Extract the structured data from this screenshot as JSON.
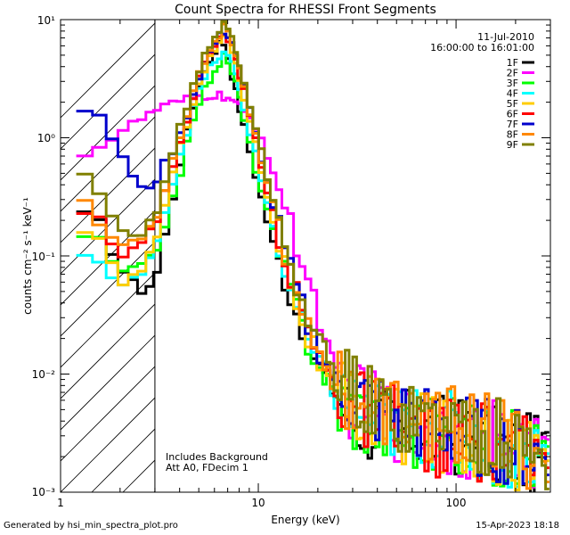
{
  "chart_data": {
    "type": "line",
    "title": "Count Spectra for RHESSI Front Segments",
    "xlabel": "Energy (keV)",
    "ylabel": "counts cm⁻² s⁻¹ keV⁻¹",
    "x_scale": "log",
    "y_scale": "log",
    "xlim": [
      1,
      300
    ],
    "ylim": [
      0.001,
      10
    ],
    "x_tick_labels": [
      "1",
      "10",
      "100"
    ],
    "y_tick_labels": [
      "10⁰",
      "10¹",
      "10⁻¹",
      "10⁻²",
      "10⁻³"
    ],
    "annotations": {
      "date": "11-Jul-2010",
      "time_range": "16:00:00 to 16:01:00",
      "background_note": "Includes Background",
      "attenuator_note": "Att A0, FDecim 1"
    },
    "hatched_region_max_keV": 3,
    "series": [
      {
        "name": "1F",
        "color": "#000000",
        "points": [
          [
            1.5,
            0.22
          ],
          [
            2,
            0.08
          ],
          [
            2.5,
            0.05
          ],
          [
            3,
            0.06
          ],
          [
            4,
            0.6
          ],
          [
            5,
            2.8
          ],
          [
            6,
            5.5
          ],
          [
            6.6,
            6.8
          ],
          [
            7,
            5
          ],
          [
            8,
            1.8
          ],
          [
            10,
            0.4
          ],
          [
            12,
            0.12
          ],
          [
            15,
            0.04
          ],
          [
            20,
            0.012
          ],
          [
            30,
            0.004
          ],
          [
            50,
            0.0035
          ],
          [
            100,
            0.003
          ],
          [
            200,
            0.0022
          ],
          [
            280,
            0.002
          ]
        ]
      },
      {
        "name": "2F",
        "color": "#ff00ff",
        "points": [
          [
            1.2,
            0.72
          ],
          [
            1.5,
            0.8
          ],
          [
            2,
            1.1
          ],
          [
            2.5,
            1.4
          ],
          [
            3,
            1.7
          ],
          [
            4,
            2.0
          ],
          [
            5,
            2.2
          ],
          [
            6,
            2.3
          ],
          [
            7,
            2.2
          ],
          [
            8,
            1.8
          ],
          [
            10,
            1.2
          ],
          [
            12,
            0.5
          ],
          [
            15,
            0.15
          ],
          [
            18,
            0.06
          ],
          [
            20,
            0.035
          ],
          [
            25,
            0.008
          ],
          [
            30,
            0.006
          ],
          [
            50,
            0.004
          ],
          [
            100,
            0.003
          ],
          [
            200,
            0.0025
          ],
          [
            280,
            0.002
          ]
        ]
      },
      {
        "name": "3F",
        "color": "#00ff00",
        "points": [
          [
            1.5,
            0.15
          ],
          [
            2,
            0.07
          ],
          [
            2.5,
            0.08
          ],
          [
            3,
            0.1
          ],
          [
            4,
            0.5
          ],
          [
            5,
            2.0
          ],
          [
            6,
            3.8
          ],
          [
            6.7,
            4.8
          ],
          [
            7.5,
            3.5
          ],
          [
            9,
            0.9
          ],
          [
            11,
            0.25
          ],
          [
            14,
            0.06
          ],
          [
            18,
            0.018
          ],
          [
            25,
            0.006
          ],
          [
            40,
            0.004
          ],
          [
            80,
            0.003
          ],
          [
            150,
            0.0025
          ],
          [
            280,
            0.002
          ]
        ]
      },
      {
        "name": "4F",
        "color": "#00ffff",
        "points": [
          [
            1.5,
            0.1
          ],
          [
            2,
            0.05
          ],
          [
            2.5,
            0.07
          ],
          [
            3,
            0.12
          ],
          [
            4,
            0.7
          ],
          [
            5,
            2.5
          ],
          [
            6,
            4.5
          ],
          [
            6.8,
            5.2
          ],
          [
            7.5,
            4
          ],
          [
            9,
            1.2
          ],
          [
            11,
            0.3
          ],
          [
            14,
            0.06
          ],
          [
            18,
            0.018
          ],
          [
            25,
            0.006
          ],
          [
            40,
            0.004
          ],
          [
            80,
            0.0035
          ],
          [
            150,
            0.0025
          ],
          [
            280,
            0.002
          ]
        ]
      },
      {
        "name": "5F",
        "color": "#ffcc00",
        "points": [
          [
            1.5,
            0.15
          ],
          [
            2,
            0.06
          ],
          [
            2.5,
            0.07
          ],
          [
            3,
            0.13
          ],
          [
            4,
            0.8
          ],
          [
            5,
            3
          ],
          [
            6,
            5.5
          ],
          [
            6.8,
            7.5
          ],
          [
            7.5,
            5
          ],
          [
            9,
            1.5
          ],
          [
            11,
            0.35
          ],
          [
            14,
            0.07
          ],
          [
            18,
            0.02
          ],
          [
            25,
            0.006
          ],
          [
            40,
            0.004
          ],
          [
            80,
            0.003
          ],
          [
            150,
            0.0025
          ],
          [
            280,
            0.002
          ]
        ]
      },
      {
        "name": "6F",
        "color": "#ff0000",
        "points": [
          [
            1.5,
            0.25
          ],
          [
            2,
            0.1
          ],
          [
            2.5,
            0.12
          ],
          [
            3,
            0.18
          ],
          [
            4,
            0.9
          ],
          [
            5,
            3.2
          ],
          [
            6,
            6
          ],
          [
            6.8,
            8
          ],
          [
            7.5,
            5.5
          ],
          [
            9,
            1.6
          ],
          [
            11,
            0.4
          ],
          [
            14,
            0.08
          ],
          [
            18,
            0.022
          ],
          [
            25,
            0.007
          ],
          [
            40,
            0.004
          ],
          [
            80,
            0.003
          ],
          [
            150,
            0.0025
          ],
          [
            280,
            0.002
          ]
        ]
      },
      {
        "name": "7F",
        "color": "#0000cc",
        "points": [
          [
            1.2,
            1.9
          ],
          [
            1.5,
            1.6
          ],
          [
            2,
            0.8
          ],
          [
            2.5,
            0.35
          ],
          [
            3,
            0.42
          ],
          [
            4,
            1.0
          ],
          [
            5,
            3.3
          ],
          [
            6,
            6.3
          ],
          [
            6.8,
            8.3
          ],
          [
            7.5,
            6
          ],
          [
            9,
            1.8
          ],
          [
            11,
            0.45
          ],
          [
            14,
            0.09
          ],
          [
            18,
            0.025
          ],
          [
            25,
            0.008
          ],
          [
            40,
            0.005
          ],
          [
            80,
            0.0035
          ],
          [
            150,
            0.0028
          ],
          [
            280,
            0.002
          ]
        ]
      },
      {
        "name": "8F",
        "color": "#ff8800",
        "points": [
          [
            1.2,
            0.4
          ],
          [
            1.5,
            0.2
          ],
          [
            2,
            0.12
          ],
          [
            2.5,
            0.14
          ],
          [
            3,
            0.2
          ],
          [
            4,
            1.0
          ],
          [
            5,
            3.5
          ],
          [
            6,
            6.5
          ],
          [
            6.9,
            9
          ],
          [
            7.5,
            6
          ],
          [
            9,
            1.8
          ],
          [
            11,
            0.45
          ],
          [
            14,
            0.09
          ],
          [
            18,
            0.025
          ],
          [
            25,
            0.008
          ],
          [
            40,
            0.005
          ],
          [
            80,
            0.004
          ],
          [
            150,
            0.003
          ],
          [
            280,
            0.002
          ]
        ]
      },
      {
        "name": "9F",
        "color": "#808000",
        "points": [
          [
            1.2,
            0.6
          ],
          [
            1.5,
            0.35
          ],
          [
            2,
            0.16
          ],
          [
            2.5,
            0.14
          ],
          [
            3,
            0.22
          ],
          [
            4,
            1.2
          ],
          [
            5,
            3.8
          ],
          [
            6,
            7
          ],
          [
            6.8,
            9.5
          ],
          [
            7.5,
            6.5
          ],
          [
            9,
            2
          ],
          [
            11,
            0.5
          ],
          [
            14,
            0.1
          ],
          [
            18,
            0.028
          ],
          [
            25,
            0.009
          ],
          [
            40,
            0.005
          ],
          [
            80,
            0.004
          ],
          [
            150,
            0.003
          ],
          [
            280,
            0.002
          ]
        ]
      }
    ]
  },
  "footer": {
    "generator": "Generated by hsi_min_spectra_plot.pro",
    "timestamp": "15-Apr-2023 18:18"
  }
}
